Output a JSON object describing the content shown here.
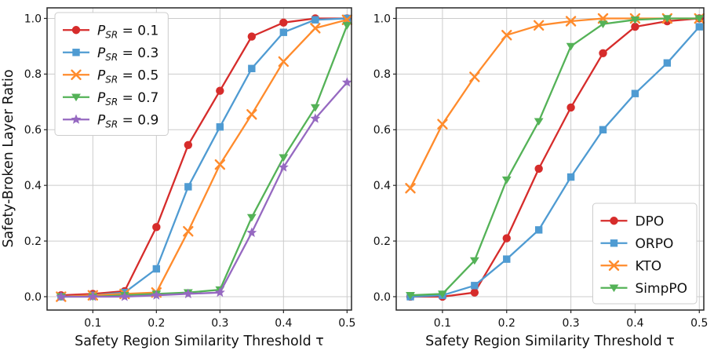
{
  "figure": {
    "background": "#ffffff"
  },
  "chart_data": [
    {
      "type": "line",
      "title": "",
      "xlabel": "Safety Region Similarity Threshold τ",
      "ylabel": "Safety-Broken Layer Ratio",
      "x": [
        0.05,
        0.1,
        0.15,
        0.2,
        0.25,
        0.3,
        0.35,
        0.4,
        0.45,
        0.5
      ],
      "xticks": [
        0.1,
        0.2,
        0.3,
        0.4,
        0.5
      ],
      "yticks": [
        0.0,
        0.2,
        0.4,
        0.6,
        0.8,
        1.0
      ],
      "xlim": [
        0.028,
        0.507
      ],
      "ylim": [
        -0.048,
        1.038
      ],
      "grid": true,
      "legend": {
        "position": "upper-left"
      },
      "series": [
        {
          "id": "psr-01",
          "label": "P_SR = 0.1",
          "label_math": {
            "base": "P",
            "sub": "SR",
            "rest": " = 0.1"
          },
          "color": "#d62c2b",
          "marker": "circle",
          "values": [
            0.005,
            0.01,
            0.02,
            0.25,
            0.545,
            0.74,
            0.935,
            0.985,
            1.0,
            1.0
          ]
        },
        {
          "id": "psr-03",
          "label": "P_SR = 0.3",
          "label_math": {
            "base": "P",
            "sub": "SR",
            "rest": " = 0.3"
          },
          "color": "#4f9bd2",
          "marker": "square",
          "values": [
            0.0,
            0.005,
            0.015,
            0.1,
            0.395,
            0.61,
            0.82,
            0.95,
            0.995,
            1.0
          ]
        },
        {
          "id": "psr-05",
          "label": "P_SR = 0.5",
          "label_math": {
            "base": "P",
            "sub": "SR",
            "rest": " = 0.5"
          },
          "color": "#ff8b2c",
          "marker": "x",
          "values": [
            0.0,
            0.005,
            0.01,
            0.015,
            0.235,
            0.475,
            0.655,
            0.845,
            0.965,
            0.995
          ]
        },
        {
          "id": "psr-07",
          "label": "P_SR = 0.7",
          "label_math": {
            "base": "P",
            "sub": "SR",
            "rest": " = 0.7"
          },
          "color": "#54b257",
          "marker": "triangle-down",
          "values": [
            0.0,
            0.0,
            0.005,
            0.01,
            0.015,
            0.025,
            0.285,
            0.5,
            0.68,
            0.975
          ]
        },
        {
          "id": "psr-09",
          "label": "P_SR = 0.9",
          "label_math": {
            "base": "P",
            "sub": "SR",
            "rest": " = 0.9"
          },
          "color": "#9669c1",
          "marker": "star",
          "values": [
            0.0,
            0.0,
            0.0,
            0.005,
            0.01,
            0.015,
            0.23,
            0.465,
            0.64,
            0.77
          ]
        }
      ]
    },
    {
      "type": "line",
      "title": "",
      "xlabel": "Safety Region Similarity Threshold τ",
      "ylabel": "",
      "x": [
        0.05,
        0.1,
        0.15,
        0.2,
        0.25,
        0.3,
        0.35,
        0.4,
        0.45,
        0.5
      ],
      "xticks": [
        0.1,
        0.2,
        0.3,
        0.4,
        0.5
      ],
      "yticks": [
        0.0,
        0.2,
        0.4,
        0.6,
        0.8,
        1.0
      ],
      "xlim": [
        0.028,
        0.507
      ],
      "ylim": [
        -0.048,
        1.038
      ],
      "grid": true,
      "legend": {
        "position": "lower-right"
      },
      "series": [
        {
          "id": "dpo",
          "label": "DPO",
          "color": "#d62c2b",
          "marker": "circle",
          "values": [
            0.0,
            0.0,
            0.015,
            0.21,
            0.46,
            0.68,
            0.875,
            0.97,
            0.99,
            1.0
          ]
        },
        {
          "id": "orpo",
          "label": "ORPO",
          "color": "#4f9bd2",
          "marker": "square",
          "values": [
            0.0,
            0.005,
            0.04,
            0.135,
            0.24,
            0.43,
            0.6,
            0.73,
            0.84,
            0.97
          ]
        },
        {
          "id": "kto",
          "label": "KTO",
          "color": "#ff8b2c",
          "marker": "x",
          "values": [
            0.39,
            0.62,
            0.79,
            0.94,
            0.975,
            0.99,
            1.0,
            1.0,
            1.0,
            1.0
          ]
        },
        {
          "id": "simppo",
          "label": "SimpPO",
          "color": "#54b257",
          "marker": "triangle-down",
          "values": [
            0.005,
            0.01,
            0.13,
            0.42,
            0.63,
            0.9,
            0.98,
            0.995,
            1.0,
            1.0
          ]
        }
      ]
    }
  ]
}
